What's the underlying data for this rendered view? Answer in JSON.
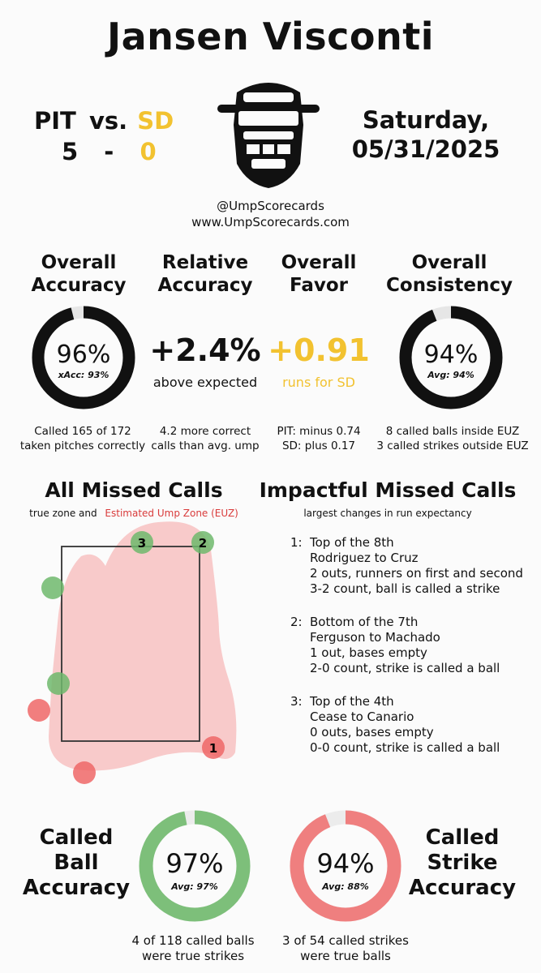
{
  "umpire_name": "Jansen Visconti",
  "game": {
    "home_team": "PIT",
    "vs": "vs.",
    "away_team": "SD",
    "home_score": "5",
    "dash": "-",
    "away_score": "0",
    "day": "Saturday,",
    "date": "05/31/2025"
  },
  "credits": {
    "handle": "@UmpScorecards",
    "site": "www.UmpScorecards.com"
  },
  "stats": {
    "overall_accuracy": {
      "title_line1": "Overall",
      "title_line2": "Accuracy",
      "value": "96%",
      "sub": "xAcc: 93%",
      "fill": 0.96,
      "detail_line1": "Called 165 of 172",
      "detail_line2": "taken pitches correctly"
    },
    "relative_accuracy": {
      "title_line1": "Relative",
      "title_line2": "Accuracy",
      "value": "+2.4%",
      "sub": "above expected",
      "detail_line1": "4.2 more correct",
      "detail_line2": "calls than avg. ump"
    },
    "overall_favor": {
      "title_line1": "Overall",
      "title_line2": "Favor",
      "value": "+0.91",
      "sub": "runs for SD",
      "detail_line1": "PIT: minus 0.74",
      "detail_line2": "SD: plus 0.17"
    },
    "overall_consistency": {
      "title_line1": "Overall",
      "title_line2": "Consistency",
      "value": "94%",
      "sub": "Avg: 94%",
      "fill": 0.94,
      "detail_line1": "8 called balls inside EUZ",
      "detail_line2": "3 called strikes outside EUZ"
    }
  },
  "missed_calls": {
    "title": "All Missed Calls",
    "caption_prefix": "true zone and",
    "caption_euz": "Estimated Ump Zone (EUZ)",
    "labels": [
      "3",
      "2",
      "1"
    ]
  },
  "impactful": {
    "title": "Impactful Missed Calls",
    "caption": "largest changes in run expectancy",
    "calls": [
      {
        "num": "1:",
        "lines": [
          "Top of the 8th",
          "Rodriguez to Cruz",
          "2 outs, runners on first and second",
          "3-2 count, ball is called a strike"
        ]
      },
      {
        "num": "2:",
        "lines": [
          "Bottom of the 7th",
          "Ferguson to Machado",
          "1 out, bases empty",
          "2-0 count, strike is called a ball"
        ]
      },
      {
        "num": "3:",
        "lines": [
          "Top of the 4th",
          "Cease to Canario",
          "0 outs, bases empty",
          "0-0 count, strike is called a ball"
        ]
      }
    ]
  },
  "called_ball": {
    "label_line1": "Called",
    "label_line2": "Ball",
    "label_line3": "Accuracy",
    "value": "97%",
    "avg": "Avg: 97%",
    "fill": 0.97,
    "color": "#7dbf7a",
    "detail_line1": "4 of 118 called balls",
    "detail_line2": "were true strikes"
  },
  "called_strike": {
    "label_line1": "Called",
    "label_line2": "Strike",
    "label_line3": "Accuracy",
    "value": "94%",
    "avg": "Avg: 88%",
    "fill": 0.94,
    "color": "#ef7f7f",
    "detail_line1": "3 of 54 called strikes",
    "detail_line2": "were true balls"
  },
  "colors": {
    "gold": "#f2c230",
    "green": "#7dbf7a",
    "red": "#ef7f7f",
    "euz": "#f8caca"
  },
  "icons": [
    "catcher-mask-icon"
  ]
}
